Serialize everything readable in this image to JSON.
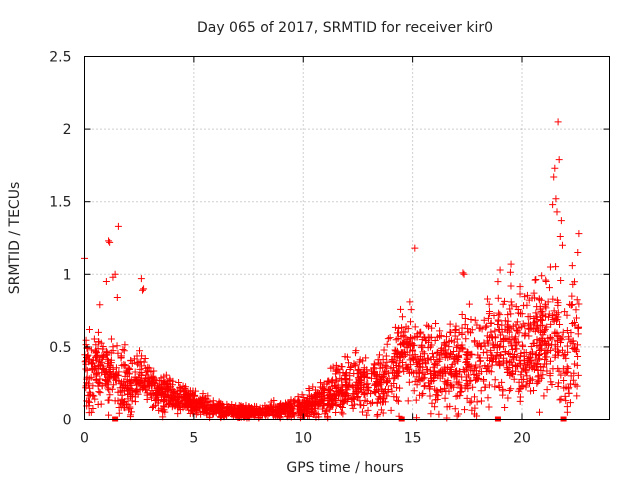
{
  "chart_data": {
    "type": "scatter",
    "title": "Day 065 of 2017, SRMTID for receiver kir0",
    "xlabel": "GPS time / hours",
    "ylabel": "SRMTID / TECUs",
    "xlim": [
      0,
      24
    ],
    "ylim": [
      0,
      2.5
    ],
    "xticks": [
      0,
      5,
      10,
      15,
      20
    ],
    "xtick_labels": [
      "0",
      "5",
      "10",
      "15",
      "20"
    ],
    "yticks": [
      0,
      0.5,
      1,
      1.5,
      2,
      2.5
    ],
    "ytick_labels": [
      "0",
      "0.5",
      "1",
      "1.5",
      "2",
      "2.5"
    ],
    "grid": true,
    "marker": "+",
    "color": "#ff0000",
    "data_gap_markers_x": [
      1.4,
      14.5,
      18.9,
      21.9
    ],
    "trend": [
      [
        0.0,
        0.32
      ],
      [
        0.5,
        0.34
      ],
      [
        1.0,
        0.38
      ],
      [
        1.5,
        0.3
      ],
      [
        2.0,
        0.22
      ],
      [
        2.5,
        0.3
      ],
      [
        3.0,
        0.24
      ],
      [
        3.5,
        0.19
      ],
      [
        4.0,
        0.17
      ],
      [
        4.5,
        0.15
      ],
      [
        5.0,
        0.12
      ],
      [
        5.5,
        0.09
      ],
      [
        6.0,
        0.07
      ],
      [
        6.5,
        0.06
      ],
      [
        7.0,
        0.06
      ],
      [
        7.5,
        0.05
      ],
      [
        8.0,
        0.05
      ],
      [
        8.5,
        0.06
      ],
      [
        9.0,
        0.06
      ],
      [
        9.5,
        0.07
      ],
      [
        10.0,
        0.09
      ],
      [
        10.5,
        0.11
      ],
      [
        11.0,
        0.14
      ],
      [
        11.5,
        0.19
      ],
      [
        12.0,
        0.24
      ],
      [
        12.5,
        0.26
      ],
      [
        13.0,
        0.24
      ],
      [
        13.5,
        0.24
      ],
      [
        14.0,
        0.3
      ],
      [
        14.5,
        0.43
      ],
      [
        15.0,
        0.45
      ],
      [
        15.5,
        0.38
      ],
      [
        16.0,
        0.35
      ],
      [
        16.5,
        0.36
      ],
      [
        17.0,
        0.38
      ],
      [
        17.5,
        0.4
      ],
      [
        18.0,
        0.42
      ],
      [
        18.5,
        0.48
      ],
      [
        19.0,
        0.5
      ],
      [
        19.5,
        0.52
      ],
      [
        20.0,
        0.48
      ],
      [
        20.5,
        0.5
      ],
      [
        21.0,
        0.52
      ],
      [
        21.5,
        0.62
      ],
      [
        22.0,
        0.4
      ],
      [
        22.5,
        0.55
      ]
    ],
    "spread": [
      [
        0.0,
        0.18
      ],
      [
        2.0,
        0.15
      ],
      [
        4.0,
        0.07
      ],
      [
        6.0,
        0.04
      ],
      [
        8.0,
        0.03
      ],
      [
        10.0,
        0.05
      ],
      [
        12.0,
        0.12
      ],
      [
        13.5,
        0.13
      ],
      [
        14.5,
        0.22
      ],
      [
        16.0,
        0.2
      ],
      [
        18.0,
        0.25
      ],
      [
        20.0,
        0.26
      ],
      [
        22.0,
        0.3
      ],
      [
        22.6,
        0.25
      ]
    ],
    "x_range_of_samples": [
      0.0,
      22.6
    ],
    "sample_count": 2400,
    "outliers": [
      [
        0.0,
        1.11
      ],
      [
        0.7,
        0.79
      ],
      [
        1.0,
        0.95
      ],
      [
        1.1,
        1.23
      ],
      [
        1.15,
        1.22
      ],
      [
        1.3,
        0.98
      ],
      [
        1.4,
        1.0
      ],
      [
        1.55,
        1.33
      ],
      [
        1.5,
        0.84
      ],
      [
        2.6,
        0.97
      ],
      [
        2.65,
        0.89
      ],
      [
        2.7,
        0.9
      ],
      [
        15.1,
        1.18
      ],
      [
        17.3,
        1.01
      ],
      [
        17.35,
        1.0
      ],
      [
        19.0,
        1.03
      ],
      [
        19.5,
        1.07
      ],
      [
        20.6,
        0.96
      ],
      [
        20.9,
        0.99
      ],
      [
        21.1,
        0.95
      ],
      [
        21.3,
        1.05
      ],
      [
        21.4,
        1.48
      ],
      [
        21.45,
        1.67
      ],
      [
        21.5,
        1.73
      ],
      [
        21.55,
        1.52
      ],
      [
        21.6,
        1.43
      ],
      [
        21.65,
        2.05
      ],
      [
        21.7,
        1.79
      ],
      [
        21.75,
        1.26
      ],
      [
        21.8,
        1.37
      ],
      [
        21.85,
        1.2
      ],
      [
        22.3,
        1.06
      ],
      [
        22.6,
        1.28
      ],
      [
        22.55,
        1.15
      ],
      [
        22.0,
        0.13
      ],
      [
        20.8,
        0.05
      ],
      [
        1.1,
        0.03
      ],
      [
        2.1,
        0.02
      ]
    ]
  }
}
